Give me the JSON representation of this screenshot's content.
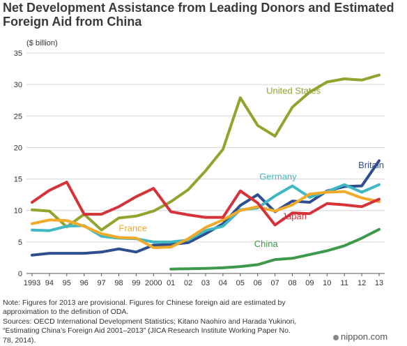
{
  "page": {
    "title": "Net Development Assistance from Leading Donors and Estimated Foreign Aid from China",
    "notes": [
      "Note: Figures for 2013 are provisional. Figures for Chinese foreign aid are estimated by",
      "approximation to the definition of ODA.",
      "Sources: OECD International Development Statistics; Kitano Naohiro and Harada Yukinori,",
      "“Estimating China’s Foreign Aid 2001–2013” (JICA Research Institute Working Paper No.",
      "78, 2014)."
    ],
    "brand": "nippon.com"
  },
  "chart_data": {
    "type": "line",
    "title": "Net Development Assistance from Leading Donors and Estimated Foreign Aid from China",
    "ylabel": "($ billion)",
    "xlabel": "",
    "ylim": [
      0,
      35
    ],
    "yticks": [
      0,
      5,
      10,
      15,
      20,
      25,
      30,
      35
    ],
    "grid": true,
    "x": [
      1993,
      1994,
      1995,
      1996,
      1997,
      1998,
      1999,
      2000,
      2001,
      2002,
      2003,
      2004,
      2005,
      2006,
      2007,
      2008,
      2009,
      2010,
      2011,
      2012,
      2013
    ],
    "xtick_labels": [
      "1993",
      "94",
      "95",
      "96",
      "97",
      "98",
      "99",
      "2000",
      "01",
      "02",
      "03",
      "04",
      "05",
      "06",
      "07",
      "08",
      "09",
      "10",
      "11",
      "12",
      "13"
    ],
    "series": [
      {
        "name": "United States",
        "color": "#8fa52e",
        "label_pos": [
          2006.5,
          28.5
        ],
        "values": [
          10.1,
          9.9,
          7.4,
          9.4,
          6.9,
          8.8,
          9.1,
          9.9,
          11.4,
          13.3,
          16.3,
          19.7,
          27.9,
          23.5,
          21.8,
          26.4,
          28.8,
          30.4,
          30.9,
          30.7,
          31.5
        ]
      },
      {
        "name": "Britain",
        "color": "#2f4e8f",
        "label_pos": [
          2011.8,
          16.7
        ],
        "values": [
          2.9,
          3.2,
          3.2,
          3.2,
          3.4,
          3.9,
          3.4,
          4.5,
          4.6,
          4.9,
          6.3,
          7.9,
          10.8,
          12.5,
          9.8,
          11.5,
          11.3,
          13.1,
          13.8,
          13.9,
          17.9
        ]
      },
      {
        "name": "Germany",
        "color": "#3fb8c4",
        "label_pos": [
          2006.1,
          14.9
        ],
        "values": [
          6.9,
          6.8,
          7.5,
          7.6,
          5.9,
          5.6,
          5.5,
          5.0,
          5.0,
          5.3,
          6.8,
          7.5,
          10.1,
          10.4,
          12.3,
          13.9,
          12.1,
          13.0,
          14.1,
          12.9,
          14.1
        ]
      },
      {
        "name": "France",
        "color": "#f0aa2a",
        "label_pos": [
          1998.0,
          6.7
        ],
        "values": [
          7.9,
          8.5,
          8.4,
          7.5,
          6.3,
          5.7,
          5.6,
          4.1,
          4.2,
          5.5,
          7.3,
          8.5,
          10.0,
          10.6,
          9.9,
          10.9,
          12.6,
          12.9,
          13.0,
          12.0,
          11.4
        ]
      },
      {
        "name": "Japan",
        "color": "#d6323a",
        "label_pos": [
          2007.4,
          8.6
        ],
        "values": [
          11.3,
          13.2,
          14.5,
          9.4,
          9.4,
          10.6,
          12.2,
          13.5,
          9.8,
          9.3,
          8.9,
          8.9,
          13.1,
          11.2,
          7.7,
          9.6,
          9.5,
          11.1,
          10.9,
          10.6,
          11.8
        ]
      },
      {
        "name": "China",
        "color": "#3e9a4b",
        "label_pos": [
          2005.8,
          4.2
        ],
        "values": [
          null,
          null,
          null,
          null,
          null,
          null,
          null,
          null,
          0.7,
          0.75,
          0.8,
          0.9,
          1.1,
          1.4,
          2.2,
          2.4,
          3.0,
          3.6,
          4.4,
          5.6,
          7.0
        ]
      }
    ]
  }
}
